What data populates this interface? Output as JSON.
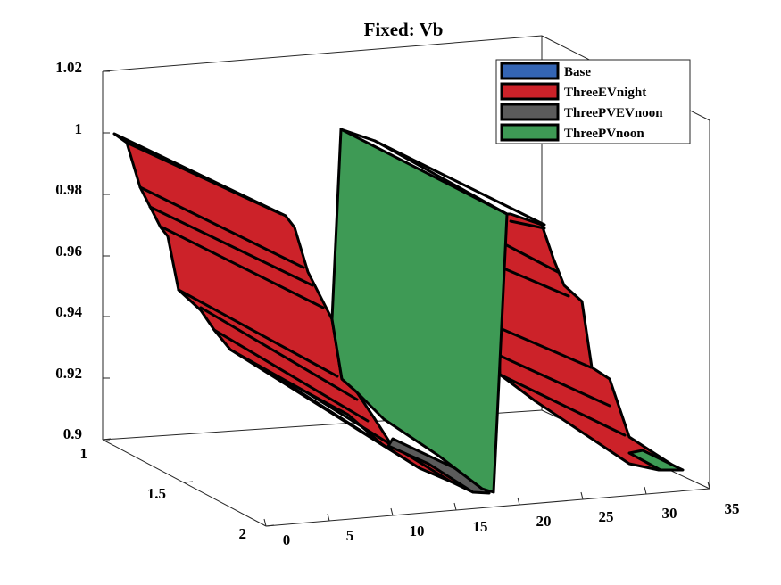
{
  "chart_data": {
    "type": "surface",
    "title": "Fixed: Vb",
    "xlabel": "",
    "ylabel": "",
    "zlabel": "",
    "x_ticks": [
      "0",
      "5",
      "10",
      "15",
      "20",
      "25",
      "30",
      "35"
    ],
    "y_ticks": [
      "1",
      "1.5",
      "2"
    ],
    "z_ticks": [
      "0.9",
      "0.92",
      "0.94",
      "0.96",
      "0.98",
      "1",
      "1.02"
    ],
    "xlim": [
      0,
      35
    ],
    "ylim": [
      1,
      2
    ],
    "zlim": [
      0.9,
      1.02
    ],
    "legend_location": "top-right",
    "series": [
      {
        "name": "Base",
        "color": "#3465b4"
      },
      {
        "name": "ThreeEVnight",
        "color": "#cc2229"
      },
      {
        "name": "ThreePVEVnoon",
        "color": "#5b5b5b"
      },
      {
        "name": "ThreePVnoon",
        "color": "#3e9a55"
      }
    ]
  }
}
